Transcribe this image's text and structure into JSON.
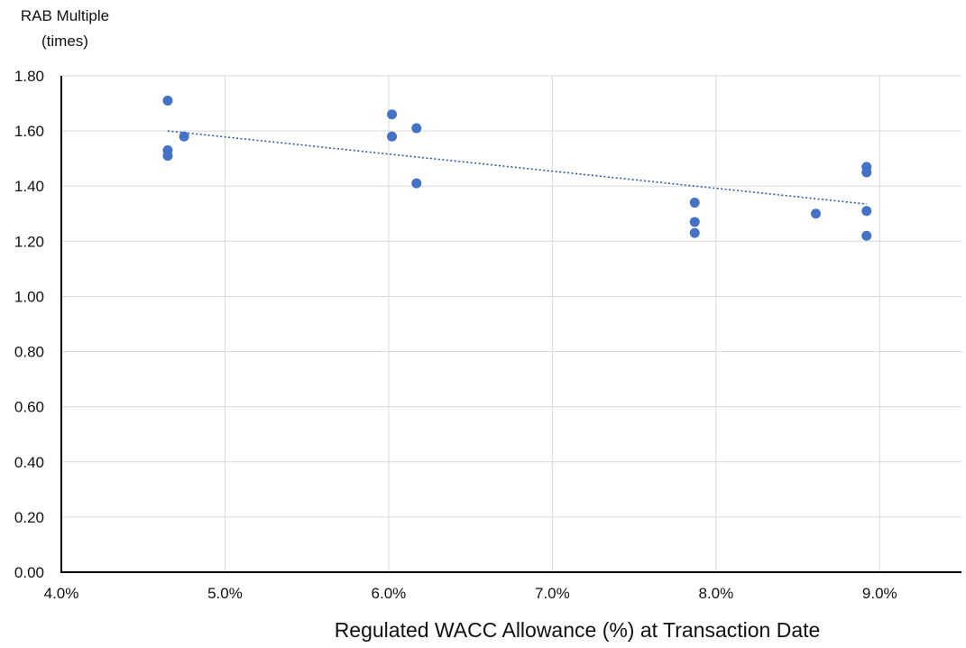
{
  "chart_data": {
    "type": "scatter",
    "title": "",
    "xlabel": "Regulated WACC Allowance (%) at Transaction Date",
    "ylabel_lines": [
      "RAB Multiple",
      "(times)"
    ],
    "xlim": [
      4.0,
      9.5
    ],
    "ylim": [
      0.0,
      1.8
    ],
    "x_ticks": [
      4.0,
      5.0,
      6.0,
      7.0,
      8.0,
      9.0
    ],
    "x_tick_labels": [
      "4.0%",
      "5.0%",
      "6.0%",
      "7.0%",
      "8.0%",
      "9.0%"
    ],
    "y_ticks": [
      0.0,
      0.2,
      0.4,
      0.6,
      0.8,
      1.0,
      1.2,
      1.4,
      1.6,
      1.8
    ],
    "y_tick_labels": [
      "0.00",
      "0.20",
      "0.40",
      "0.60",
      "0.80",
      "1.00",
      "1.20",
      "1.40",
      "1.60",
      "1.80"
    ],
    "grid": true,
    "marker_color": "#4472C4",
    "trendline": {
      "type": "linear",
      "style": "dotted",
      "color": "#2E5EAA",
      "from": [
        4.65,
        1.6
      ],
      "to": [
        8.92,
        1.335
      ]
    },
    "points": [
      {
        "x": 4.65,
        "y": 1.71
      },
      {
        "x": 4.65,
        "y": 1.53
      },
      {
        "x": 4.65,
        "y": 1.51
      },
      {
        "x": 4.75,
        "y": 1.58
      },
      {
        "x": 6.02,
        "y": 1.66
      },
      {
        "x": 6.02,
        "y": 1.58
      },
      {
        "x": 6.17,
        "y": 1.61
      },
      {
        "x": 6.17,
        "y": 1.41
      },
      {
        "x": 7.87,
        "y": 1.34
      },
      {
        "x": 7.87,
        "y": 1.27
      },
      {
        "x": 7.87,
        "y": 1.23
      },
      {
        "x": 8.61,
        "y": 1.3
      },
      {
        "x": 8.92,
        "y": 1.47
      },
      {
        "x": 8.92,
        "y": 1.45
      },
      {
        "x": 8.92,
        "y": 1.31
      },
      {
        "x": 8.92,
        "y": 1.22
      }
    ]
  }
}
